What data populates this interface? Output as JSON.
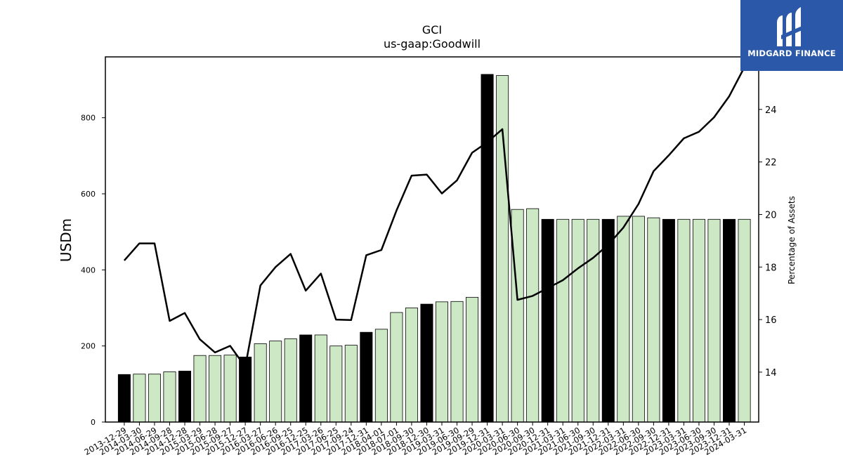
{
  "chart_data": {
    "type": "bar",
    "title": "GCI",
    "subtitle": "us-gaap:Goodwill",
    "ylabel": "USDm",
    "y2label": "Percentage of Assets",
    "ylim": [
      0,
      960
    ],
    "y2lim": [
      12.1,
      26.0
    ],
    "yticks": [
      0,
      200,
      400,
      600,
      800
    ],
    "y2ticks": [
      14,
      16,
      18,
      20,
      22,
      24
    ],
    "categories": [
      "2013-12-29",
      "2014-03-30",
      "2014-06-29",
      "2014-09-28",
      "2014-12-28",
      "2015-03-29",
      "2015-06-28",
      "2015-09-27",
      "2015-12-27",
      "2016-03-27",
      "2016-06-26",
      "2016-09-25",
      "2016-12-25",
      "2017-03-26",
      "2017-06-25",
      "2017-09-24",
      "2017-12-31",
      "2018-04-01",
      "2018-07-01",
      "2018-09-30",
      "2018-12-30",
      "2019-03-31",
      "2019-06-30",
      "2019-09-29",
      "2019-12-31",
      "2020-03-31",
      "2020-06-30",
      "2020-09-30",
      "2020-12-31",
      "2021-03-31",
      "2021-06-30",
      "2021-09-30",
      "2021-12-31",
      "2022-03-31",
      "2022-06-30",
      "2022-09-30",
      "2022-12-31",
      "2023-03-31",
      "2023-06-30",
      "2023-09-30",
      "2023-12-31",
      "2024-03-31"
    ],
    "series": [
      {
        "type": "bar",
        "values": [
          125,
          126,
          126,
          132,
          134,
          175,
          175,
          176,
          171,
          206,
          213,
          219,
          229,
          229,
          200,
          202,
          236,
          244,
          288,
          300,
          310,
          316,
          317,
          328,
          914,
          911,
          559,
          561,
          533,
          533,
          533,
          533,
          533,
          541,
          541,
          537,
          533,
          533,
          533,
          533,
          533,
          533
        ]
      },
      {
        "type": "line",
        "axis": "y2",
        "values": [
          18.25,
          18.9,
          18.9,
          15.95,
          16.25,
          15.25,
          14.75,
          15.0,
          14.2,
          17.3,
          18.0,
          18.5,
          17.1,
          17.75,
          16.0,
          15.98,
          18.45,
          18.65,
          20.15,
          21.48,
          21.52,
          20.8,
          21.3,
          22.35,
          22.75,
          23.25,
          16.75,
          16.9,
          17.2,
          17.5,
          17.95,
          18.35,
          18.85,
          19.5,
          20.4,
          21.65,
          22.25,
          22.9,
          23.15,
          23.7,
          24.5,
          25.6
        ]
      }
    ],
    "highlight_color": "#000000",
    "bar_color": "#cce8c4",
    "line_color": "#000000"
  },
  "logo": {
    "text": "MIDGARD FINANCE",
    "bg": "#2b58a8"
  }
}
